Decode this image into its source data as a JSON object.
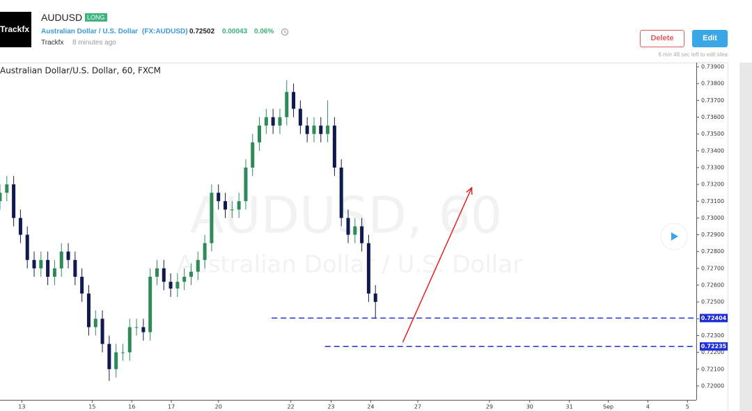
{
  "header": {
    "logo": "Trackfx",
    "symbol": "AUDUSD",
    "badge": "LONG",
    "instrument": "Australian Dollar / U.S. Dollar",
    "exchange": "(FX:AUDUSD)",
    "price": "0.72502",
    "change": "0.00043",
    "change_pct": "0.06%",
    "author": "Trackfx",
    "time": "8 minutes ago",
    "delete": "Delete",
    "edit": "Edit",
    "edit_note": "6 min 48 sec left to edit idea"
  },
  "chart_data": {
    "type": "candlestick",
    "legend": "Australian Dollar/U.S. Dollar, 60, FXCM",
    "watermark": "AUDUSD, 60",
    "watermark_sub": "Australian Dollar / U.S. Dollar",
    "up_color": "#2f8a5a",
    "down_color": "#101a4e",
    "open": [
      0.731,
      0.7315,
      0.732,
      0.73,
      0.729,
      0.7275,
      0.727,
      0.7275,
      0.7265,
      0.727,
      0.728,
      0.7275,
      0.7265,
      0.7255,
      0.7235,
      0.724,
      0.7225,
      0.721,
      0.722,
      0.722,
      0.7235,
      0.7235,
      0.7232,
      0.7265,
      0.727,
      0.7262,
      0.7258,
      0.7262,
      0.7265,
      0.7268,
      0.7275,
      0.7285,
      0.7315,
      0.731,
      0.7305,
      0.7305,
      0.731,
      0.733,
      0.7345,
      0.7355,
      0.736,
      0.7355,
      0.736,
      0.7375,
      0.7365,
      0.7355,
      0.735,
      0.7355,
      0.735,
      0.7355,
      0.733,
      0.73,
      0.729,
      0.7295,
      0.7285,
      0.7255
    ],
    "high": [
      0.732,
      0.7325,
      0.7325,
      0.7305,
      0.7295,
      0.728,
      0.728,
      0.728,
      0.7275,
      0.7285,
      0.7285,
      0.728,
      0.727,
      0.726,
      0.7245,
      0.7245,
      0.723,
      0.7225,
      0.7225,
      0.724,
      0.724,
      0.724,
      0.727,
      0.7275,
      0.7275,
      0.7267,
      0.7267,
      0.727,
      0.7273,
      0.728,
      0.729,
      0.732,
      0.732,
      0.7315,
      0.731,
      0.7315,
      0.7335,
      0.735,
      0.736,
      0.7365,
      0.7365,
      0.7365,
      0.7382,
      0.738,
      0.737,
      0.736,
      0.736,
      0.736,
      0.737,
      0.736,
      0.7335,
      0.7305,
      0.73,
      0.73,
      0.729,
      0.726
    ],
    "low": [
      0.7305,
      0.731,
      0.7295,
      0.7285,
      0.727,
      0.7265,
      0.7265,
      0.726,
      0.726,
      0.7265,
      0.727,
      0.726,
      0.725,
      0.723,
      0.723,
      0.722,
      0.7203,
      0.7205,
      0.7215,
      0.7215,
      0.723,
      0.7227,
      0.7227,
      0.726,
      0.7257,
      0.7253,
      0.7253,
      0.7257,
      0.726,
      0.7263,
      0.727,
      0.728,
      0.7305,
      0.73,
      0.73,
      0.73,
      0.7305,
      0.7325,
      0.734,
      0.735,
      0.735,
      0.735,
      0.7355,
      0.736,
      0.735,
      0.7345,
      0.7345,
      0.7345,
      0.7345,
      0.7325,
      0.7295,
      0.7285,
      0.7285,
      0.728,
      0.725,
      0.724
    ],
    "close": [
      0.7315,
      0.732,
      0.73,
      0.729,
      0.7275,
      0.727,
      0.7275,
      0.7265,
      0.727,
      0.728,
      0.7275,
      0.7265,
      0.7255,
      0.7235,
      0.724,
      0.7225,
      0.721,
      0.722,
      0.722,
      0.7235,
      0.7235,
      0.7232,
      0.7265,
      0.727,
      0.7262,
      0.7258,
      0.7262,
      0.7265,
      0.7268,
      0.7275,
      0.7285,
      0.7315,
      0.731,
      0.7305,
      0.7305,
      0.731,
      0.733,
      0.7345,
      0.7355,
      0.736,
      0.7355,
      0.736,
      0.7375,
      0.7365,
      0.7355,
      0.735,
      0.7355,
      0.735,
      0.7355,
      0.733,
      0.73,
      0.729,
      0.7295,
      0.7285,
      0.7255,
      0.725
    ],
    "hlines": [
      {
        "value": 0.72404,
        "label": "0.72404",
        "from": 39.8,
        "color": "#1f2fd6"
      },
      {
        "value": 0.72235,
        "label": "0.72235",
        "from": 47.6,
        "color": "#1f2fd6"
      }
    ],
    "arrow": {
      "x": [
        59,
        69.1
      ],
      "y": [
        0.7226,
        0.7318
      ],
      "color": "#e02020"
    },
    "xlim": [
      0,
      102
    ],
    "ylim": [
      0.71917,
      0.73925
    ],
    "xticks": [
      {
        "value": 3.2,
        "label": "13"
      },
      {
        "value": 13.5,
        "label": "15"
      },
      {
        "value": 19.3,
        "label": "16"
      },
      {
        "value": 25.1,
        "label": "17"
      },
      {
        "value": 32,
        "label": "20"
      },
      {
        "value": 42.6,
        "label": "22"
      },
      {
        "value": 48.5,
        "label": "23"
      },
      {
        "value": 54.3,
        "label": "24"
      },
      {
        "value": 61.2,
        "label": "27"
      },
      {
        "value": 71.7,
        "label": "29"
      },
      {
        "value": 77.6,
        "label": "30"
      },
      {
        "value": 83.4,
        "label": "31"
      },
      {
        "value": 89.1,
        "label": "Sep"
      },
      {
        "value": 94.9,
        "label": "4"
      },
      {
        "value": 100.7,
        "label": "5"
      }
    ],
    "yticks": [
      {
        "value": 0.72,
        "label": "0.72000"
      },
      {
        "value": 0.721,
        "label": "0.72100"
      },
      {
        "value": 0.722,
        "label": "0.72200"
      },
      {
        "value": 0.723,
        "label": "0.72300"
      },
      {
        "value": 0.724,
        "label": "0.72400"
      },
      {
        "value": 0.725,
        "label": "0.72500"
      },
      {
        "value": 0.726,
        "label": "0.72600"
      },
      {
        "value": 0.727,
        "label": "0.72700"
      },
      {
        "value": 0.728,
        "label": "0.72800"
      },
      {
        "value": 0.729,
        "label": "0.72900"
      },
      {
        "value": 0.73,
        "label": "0.73000"
      },
      {
        "value": 0.731,
        "label": "0.73100"
      },
      {
        "value": 0.732,
        "label": "0.73200"
      },
      {
        "value": 0.733,
        "label": "0.73300"
      },
      {
        "value": 0.734,
        "label": "0.73400"
      },
      {
        "value": 0.735,
        "label": "0.73500"
      },
      {
        "value": 0.736,
        "label": "0.73600"
      },
      {
        "value": 0.737,
        "label": "0.73700"
      },
      {
        "value": 0.738,
        "label": "0.73800"
      },
      {
        "value": 0.739,
        "label": "0.73900"
      }
    ]
  }
}
